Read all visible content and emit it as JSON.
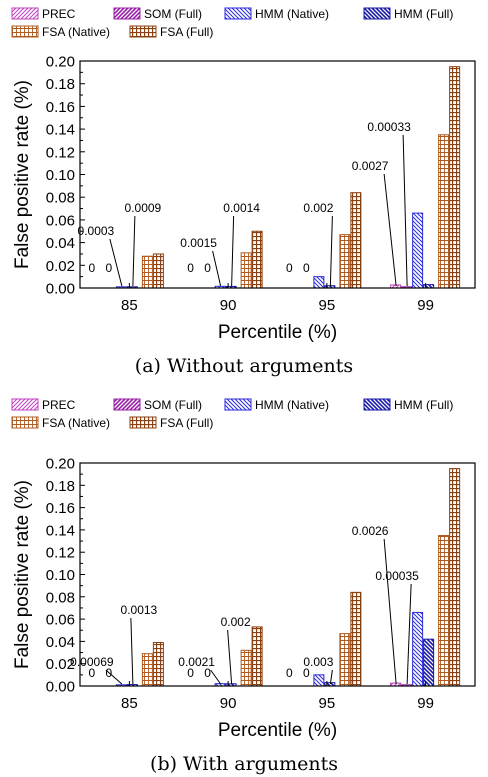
{
  "chart_data": [
    {
      "type": "bar",
      "caption": "(a) Without arguments",
      "xlabel": "Percentile (%)",
      "ylabel": "False positive rate (%)",
      "ylim": [
        0,
        0.2
      ],
      "yticks": [
        "0.00",
        "0.02",
        "0.04",
        "0.06",
        "0.08",
        "0.10",
        "0.12",
        "0.14",
        "0.16",
        "0.18",
        "0.20"
      ],
      "categories": [
        "85",
        "90",
        "95",
        "99"
      ],
      "legend_position": "top",
      "series": [
        {
          "name": "PREC",
          "values": [
            0,
            0,
            0,
            0.0027
          ]
        },
        {
          "name": "SOM (Full)",
          "values": [
            0,
            0,
            0,
            0.00033
          ]
        },
        {
          "name": "HMM (Native)",
          "values": [
            0.0003,
            0.0015,
            0.01,
            0.066
          ]
        },
        {
          "name": "HMM (Full)",
          "values": [
            0.0009,
            0.0014,
            0.002,
            0.003
          ]
        },
        {
          "name": "FSA (Native)",
          "values": [
            0.028,
            0.031,
            0.047,
            0.135
          ]
        },
        {
          "name": "FSA (Full)",
          "values": [
            0.03,
            0.05,
            0.084,
            0.195
          ]
        }
      ],
      "annotations": [
        {
          "text": "0",
          "category": "85",
          "series": 0
        },
        {
          "text": "0",
          "category": "85",
          "series": 1
        },
        {
          "text": "0.0003",
          "category": "85",
          "series": 2
        },
        {
          "text": "0.0009",
          "category": "85",
          "series": 3
        },
        {
          "text": "0",
          "category": "90",
          "series": 0
        },
        {
          "text": "0",
          "category": "90",
          "series": 1
        },
        {
          "text": "0.0015",
          "category": "90",
          "series": 2
        },
        {
          "text": "0.0014",
          "category": "90",
          "series": 3
        },
        {
          "text": "0",
          "category": "95",
          "series": 0
        },
        {
          "text": "0",
          "category": "95",
          "series": 1
        },
        {
          "text": "0.002",
          "category": "95",
          "series": 3
        },
        {
          "text": "0.0027",
          "category": "99",
          "series": 0
        },
        {
          "text": "0.00033",
          "category": "99",
          "series": 1
        }
      ]
    },
    {
      "type": "bar",
      "caption": "(b) With arguments",
      "xlabel": "Percentile (%)",
      "ylabel": "False positive rate (%)",
      "ylim": [
        0,
        0.2
      ],
      "yticks": [
        "0.00",
        "0.02",
        "0.04",
        "0.06",
        "0.08",
        "0.10",
        "0.12",
        "0.14",
        "0.16",
        "0.18",
        "0.20"
      ],
      "categories": [
        "85",
        "90",
        "95",
        "99"
      ],
      "legend_position": "top",
      "series": [
        {
          "name": "PREC",
          "values": [
            0,
            0,
            0,
            0.0026
          ]
        },
        {
          "name": "SOM (Full)",
          "values": [
            0,
            0,
            0,
            0.00035
          ]
        },
        {
          "name": "HMM (Native)",
          "values": [
            0.00069,
            0.0021,
            0.01,
            0.066
          ]
        },
        {
          "name": "HMM (Full)",
          "values": [
            0.0013,
            0.002,
            0.003,
            0.042
          ]
        },
        {
          "name": "FSA (Native)",
          "values": [
            0.029,
            0.032,
            0.047,
            0.135
          ]
        },
        {
          "name": "FSA (Full)",
          "values": [
            0.039,
            0.053,
            0.084,
            0.195
          ]
        }
      ],
      "annotations": [
        {
          "text": "0",
          "category": "85",
          "series": 0
        },
        {
          "text": "0",
          "category": "85",
          "series": 1
        },
        {
          "text": "0.00069",
          "category": "85",
          "series": 2
        },
        {
          "text": "0.0013",
          "category": "85",
          "series": 3
        },
        {
          "text": "0",
          "category": "90",
          "series": 0
        },
        {
          "text": "0",
          "category": "90",
          "series": 1
        },
        {
          "text": "0.0021",
          "category": "90",
          "series": 2
        },
        {
          "text": "0.002",
          "category": "90",
          "series": 3
        },
        {
          "text": "0",
          "category": "95",
          "series": 0
        },
        {
          "text": "0",
          "category": "95",
          "series": 1
        },
        {
          "text": "0.003",
          "category": "95",
          "series": 3
        },
        {
          "text": "0.0026",
          "category": "99",
          "series": 0
        },
        {
          "text": "0.00035",
          "category": "99",
          "series": 1
        }
      ]
    }
  ],
  "colors": {
    "prec": "#c040c0",
    "som": "#9a1fa8",
    "hmm_native": "#2a2ae0",
    "hmm_full": "#1a1aa8",
    "fsa_native": "#b05a20",
    "fsa_full": "#8a4010"
  }
}
